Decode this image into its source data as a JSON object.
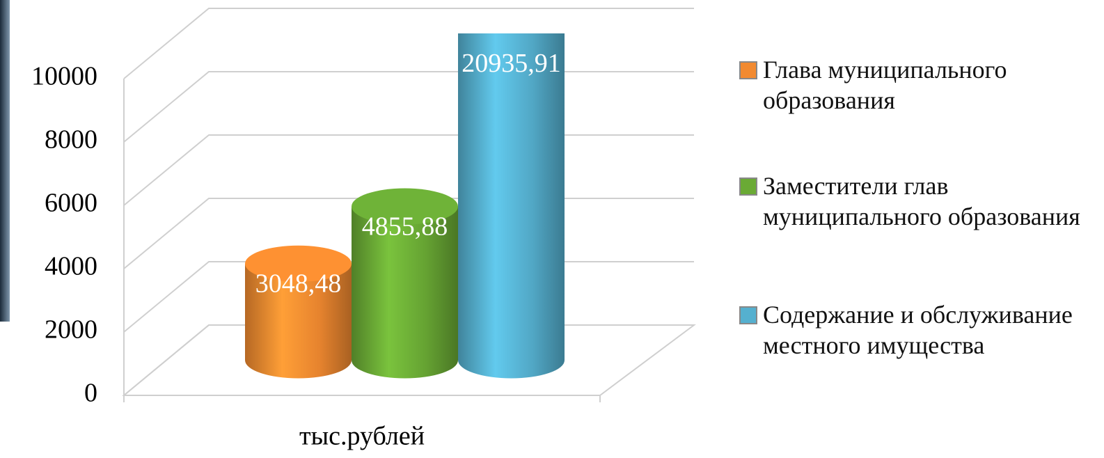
{
  "chart_data": {
    "type": "bar3d",
    "categories": [
      "тыс.рублей"
    ],
    "series": [
      {
        "name": "Глава муниципального образования",
        "color": "#f28a30",
        "values": [
          3048.48
        ],
        "value_labels": [
          "3048,48"
        ]
      },
      {
        "name": "Заместители глав муниципального образования",
        "color": "#6aaa35",
        "values": [
          4855.88
        ],
        "value_labels": [
          "4855,88"
        ]
      },
      {
        "name": "Содержание и обслуживание местного имущества",
        "color": "#55b0cf",
        "values": [
          20935.91
        ],
        "value_labels": [
          "20935,91"
        ]
      }
    ],
    "ylim": [
      0,
      10000
    ],
    "yticks": [
      0,
      2000,
      4000,
      6000,
      8000,
      10000
    ],
    "grid": true,
    "legend": "right"
  }
}
